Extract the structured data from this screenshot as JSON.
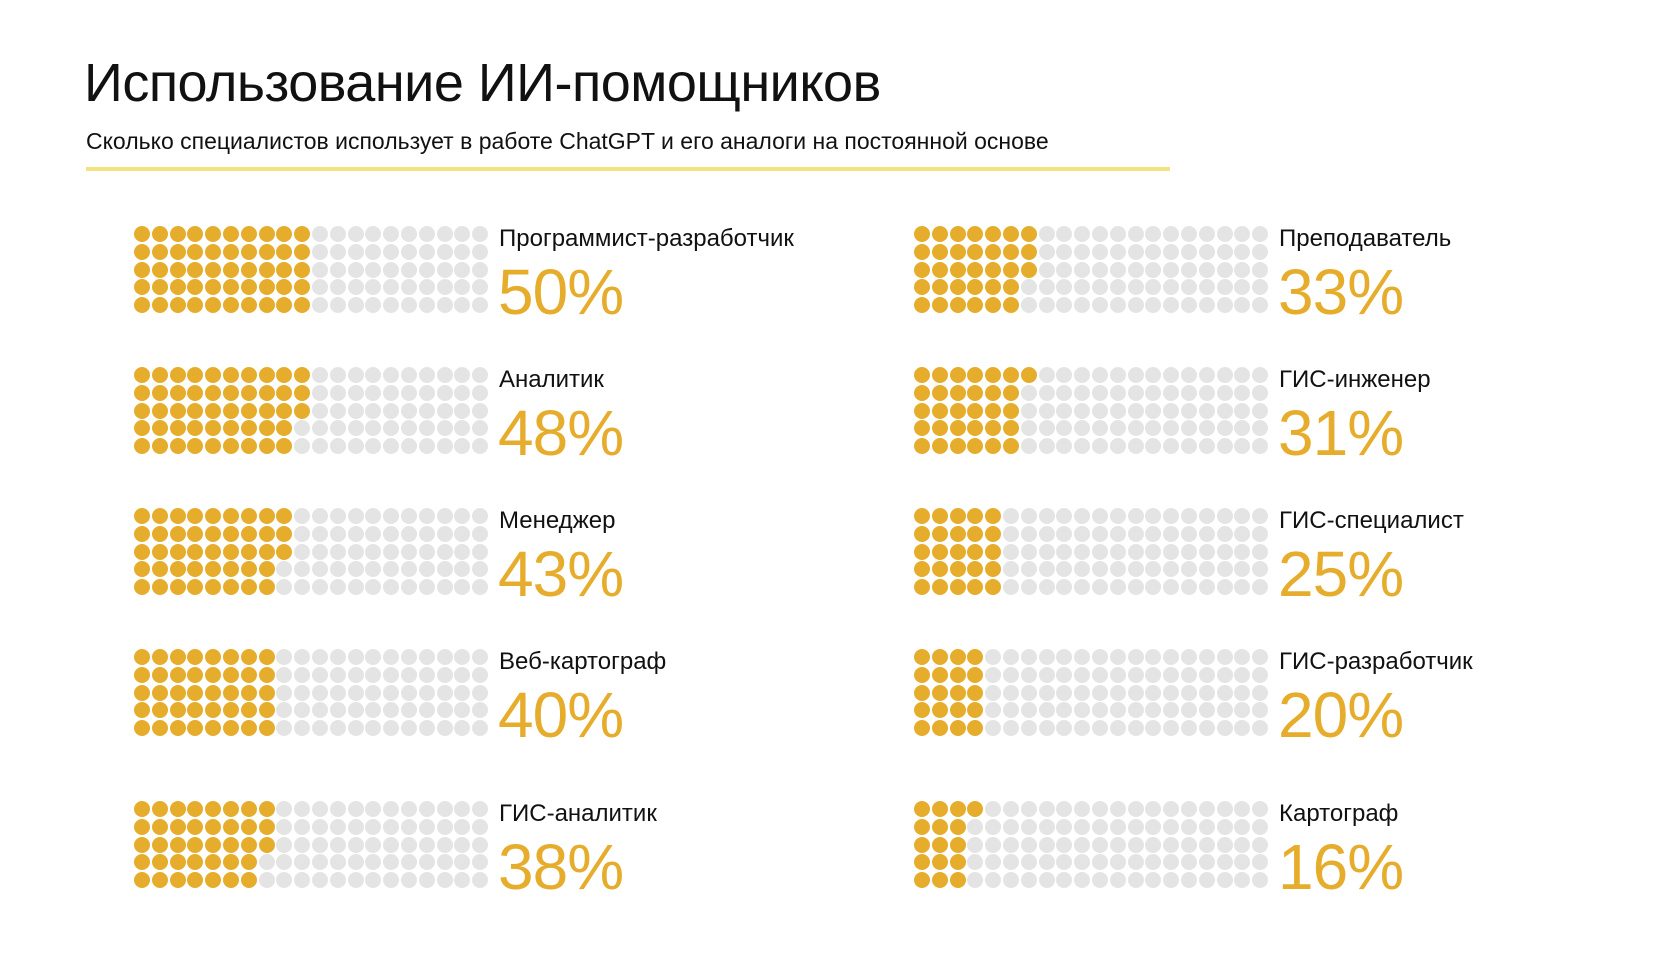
{
  "title": "Использование ИИ-помощников",
  "subtitle": "Сколько специалистов использует в работе ChatGPT и его аналоги на постоянной основе",
  "colors": {
    "filled": "#e6ac2c",
    "empty": "#e4e4e4",
    "value_text": "#e6ac2c",
    "accent_line": "#f4e27c"
  },
  "chart_data": {
    "type": "waffle",
    "grid": {
      "rows": 5,
      "cols": 20,
      "fill_order": "column-wise, top-to-bottom then left-to-right"
    },
    "items": [
      {
        "label": "Программист-разработчик",
        "value": 50,
        "value_label": "50%"
      },
      {
        "label": "Аналитик",
        "value": 48,
        "value_label": "48%"
      },
      {
        "label": "Менеджер",
        "value": 43,
        "value_label": "43%"
      },
      {
        "label": "Веб-картограф",
        "value": 40,
        "value_label": "40%"
      },
      {
        "label": "ГИС-аналитик",
        "value": 38,
        "value_label": "38%"
      },
      {
        "label": "Преподаватель",
        "value": 33,
        "value_label": "33%"
      },
      {
        "label": "ГИС-инженер",
        "value": 31,
        "value_label": "31%"
      },
      {
        "label": "ГИС-специалист",
        "value": 25,
        "value_label": "25%"
      },
      {
        "label": "ГИС-разработчик",
        "value": 20,
        "value_label": "20%"
      },
      {
        "label": "Картограф",
        "value": 16,
        "value_label": "16%"
      }
    ]
  }
}
